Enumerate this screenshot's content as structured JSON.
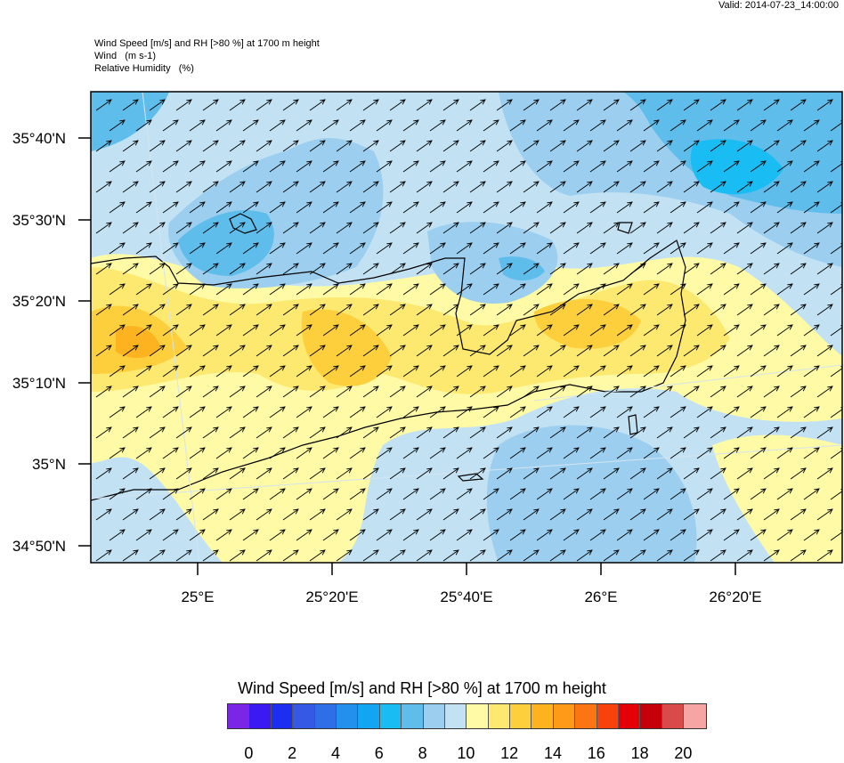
{
  "header": {
    "valid": "Valid: 2014-07-23_14:00:00",
    "title_lines": [
      "Wind Speed [m/s] and RH [>80 %] at 1700 m height",
      "Wind   (m s-1)",
      "Relative Humidity   (%)"
    ]
  },
  "map": {
    "lat_labels": [
      "35°40'N",
      "35°30'N",
      "35°20'N",
      "35°10'N",
      "35°N",
      "34°50'N"
    ],
    "lon_labels": [
      "25°E",
      "25°20'E",
      "25°40'E",
      "26°E",
      "26°20'E"
    ],
    "wind_direction": "southwesterly"
  },
  "colorbar": {
    "title": "Wind Speed [m/s] and RH [>80 %] at 1700 m height",
    "colors": [
      "#7b26e6",
      "#3a19f3",
      "#1b2ff0",
      "#3559e4",
      "#2e6fe8",
      "#2390ee",
      "#12a6f2",
      "#19bdf4",
      "#5fbdec",
      "#9ccfef",
      "#c2e2f4",
      "#fffaa5",
      "#fde96f",
      "#fdcf3c",
      "#fdb21f",
      "#fe9a17",
      "#fb7512",
      "#f9410c",
      "#e50008",
      "#c5000a",
      "#d94b4b",
      "#f6a4a4"
    ],
    "labels": [
      "0",
      "2",
      "4",
      "6",
      "8",
      "10",
      "12",
      "14",
      "16",
      "18",
      "20"
    ]
  }
}
